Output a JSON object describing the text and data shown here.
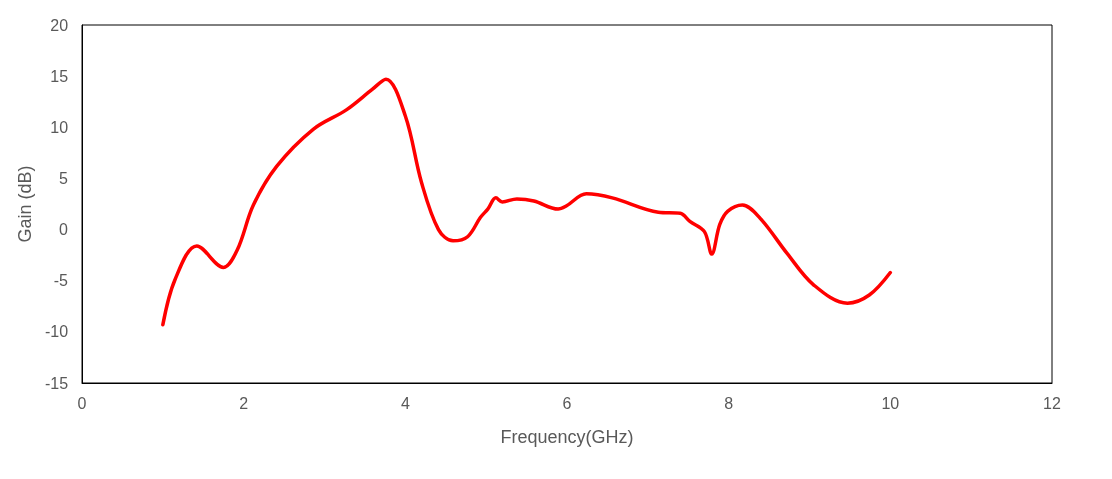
{
  "chart_data": {
    "type": "line",
    "xlabel": "Frequency(GHz)",
    "ylabel": "Gain (dB)",
    "series": [
      {
        "color": "#ff0000",
        "x": [
          1.0,
          1.15,
          1.42,
          1.75,
          1.92,
          2.12,
          2.41,
          2.86,
          3.27,
          3.59,
          3.76,
          4.0,
          4.2,
          4.41,
          4.59,
          4.77,
          4.93,
          5.02,
          5.12,
          5.2,
          5.38,
          5.59,
          5.89,
          5.99,
          6.24,
          6.56,
          7.13,
          7.4,
          7.52,
          7.7,
          7.79,
          7.89,
          7.99,
          8.17,
          8.39,
          8.72,
          9.05,
          9.47,
          9.74,
          10.0
        ],
        "values": [
          -9.3,
          -4.9,
          -1.6,
          -3.7,
          -2.0,
          2.4,
          6.2,
          9.8,
          11.7,
          13.7,
          14.7,
          11.1,
          4.6,
          0,
          -1.1,
          -0.7,
          1.2,
          2.0,
          3.1,
          2.7,
          3.0,
          2.8,
          2.0,
          2.3,
          3.5,
          3.1,
          1.7,
          1.6,
          0.8,
          -0.2,
          -2.4,
          0.5,
          1.8,
          2.4,
          1.1,
          -2.3,
          -5.4,
          -7.2,
          -6.4,
          -4.2
        ]
      }
    ],
    "xlim": [
      0,
      12
    ],
    "xticks": [
      0,
      2,
      4,
      6,
      8,
      10,
      12
    ],
    "ylim": [
      -15,
      20
    ],
    "yticks": [
      -15,
      -10,
      -5,
      0,
      5,
      10,
      15,
      20
    ],
    "grid": false,
    "marker": "none",
    "line_style": "solid"
  }
}
